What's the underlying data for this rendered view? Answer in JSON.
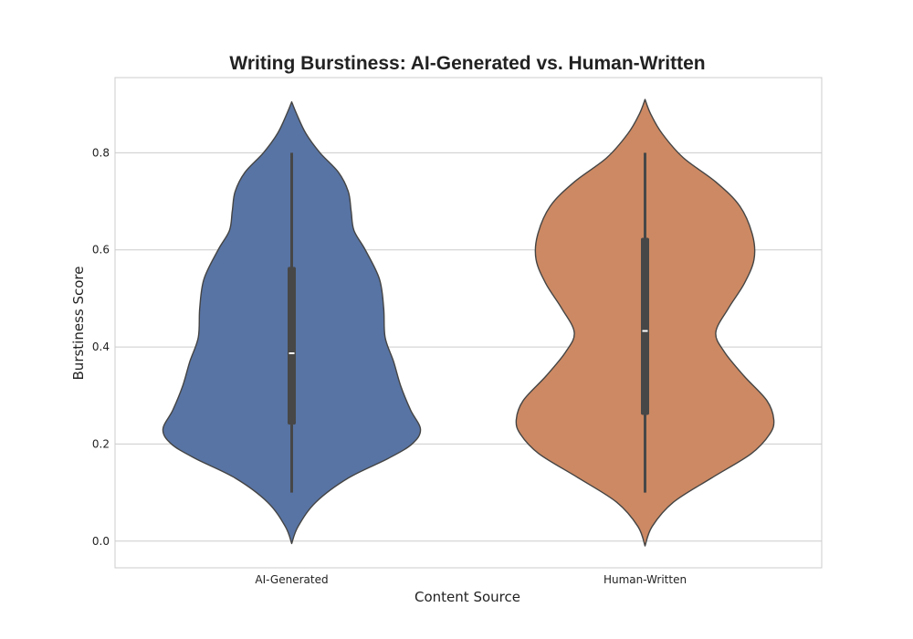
{
  "chart_data": {
    "type": "violin",
    "title": "Writing Burstiness: AI-Generated vs. Human-Written",
    "xlabel": "Content Source",
    "ylabel": "Burstiness Score",
    "categories": [
      "AI-Generated",
      "Human-Written"
    ],
    "ylim": [
      -0.055,
      0.955
    ],
    "yticks": [
      0.0,
      0.2,
      0.4,
      0.6,
      0.8
    ],
    "grid": "horizontal",
    "series": [
      {
        "category": "AI-Generated",
        "color": "#5874a4",
        "whisker": [
          0.1,
          0.8
        ],
        "q1": 0.24,
        "median": 0.387,
        "q3": 0.565,
        "density": [
          {
            "y": -0.005,
            "w": 0.0
          },
          {
            "y": 0.03,
            "w": 0.045
          },
          {
            "y": 0.08,
            "w": 0.17
          },
          {
            "y": 0.13,
            "w": 0.4
          },
          {
            "y": 0.17,
            "w": 0.68
          },
          {
            "y": 0.2,
            "w": 0.85
          },
          {
            "y": 0.23,
            "w": 0.91
          },
          {
            "y": 0.27,
            "w": 0.84
          },
          {
            "y": 0.32,
            "w": 0.77
          },
          {
            "y": 0.37,
            "w": 0.72
          },
          {
            "y": 0.42,
            "w": 0.66
          },
          {
            "y": 0.48,
            "w": 0.65
          },
          {
            "y": 0.54,
            "w": 0.62
          },
          {
            "y": 0.6,
            "w": 0.52
          },
          {
            "y": 0.64,
            "w": 0.44
          },
          {
            "y": 0.68,
            "w": 0.42
          },
          {
            "y": 0.72,
            "w": 0.4
          },
          {
            "y": 0.76,
            "w": 0.33
          },
          {
            "y": 0.8,
            "w": 0.2
          },
          {
            "y": 0.84,
            "w": 0.1
          },
          {
            "y": 0.88,
            "w": 0.035
          },
          {
            "y": 0.905,
            "w": 0.0
          }
        ]
      },
      {
        "category": "Human-Written",
        "color": "#cc8963",
        "whisker": [
          0.1,
          0.8
        ],
        "q1": 0.26,
        "median": 0.433,
        "q3": 0.625,
        "density": [
          {
            "y": -0.01,
            "w": 0.0
          },
          {
            "y": 0.03,
            "w": 0.05
          },
          {
            "y": 0.08,
            "w": 0.2
          },
          {
            "y": 0.13,
            "w": 0.47
          },
          {
            "y": 0.18,
            "w": 0.75
          },
          {
            "y": 0.22,
            "w": 0.88
          },
          {
            "y": 0.25,
            "w": 0.91
          },
          {
            "y": 0.29,
            "w": 0.86
          },
          {
            "y": 0.34,
            "w": 0.7
          },
          {
            "y": 0.39,
            "w": 0.56
          },
          {
            "y": 0.43,
            "w": 0.5
          },
          {
            "y": 0.48,
            "w": 0.59
          },
          {
            "y": 0.53,
            "w": 0.7
          },
          {
            "y": 0.58,
            "w": 0.77
          },
          {
            "y": 0.63,
            "w": 0.76
          },
          {
            "y": 0.69,
            "w": 0.67
          },
          {
            "y": 0.74,
            "w": 0.5
          },
          {
            "y": 0.79,
            "w": 0.27
          },
          {
            "y": 0.84,
            "w": 0.12
          },
          {
            "y": 0.88,
            "w": 0.04
          },
          {
            "y": 0.91,
            "w": 0.0
          }
        ]
      }
    ]
  }
}
